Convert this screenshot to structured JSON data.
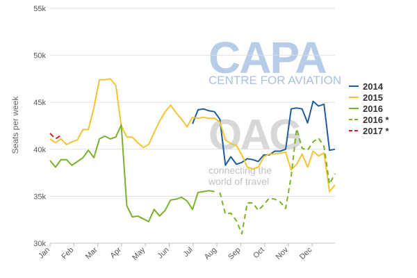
{
  "watermarks": {
    "capa_big": "CAPA",
    "capa_small": "CENTRE FOR AVIATION",
    "oag_big": "OAG",
    "oag_line1": "connecting the",
    "oag_line2": "world of travel",
    "capa_color": "#9fbbe0",
    "oag_color": "#c8c8c8"
  },
  "chart_data": {
    "type": "line",
    "title": "",
    "xlabel": "",
    "ylabel": "Seats per week",
    "ylim": [
      30000,
      55000
    ],
    "yticks": [
      30000,
      35000,
      40000,
      45000,
      50000,
      55000
    ],
    "ytick_labels": [
      "30k",
      "35k",
      "40k",
      "45k",
      "50k",
      "55k"
    ],
    "xlim": [
      0,
      52
    ],
    "xticks": [
      0,
      4.35,
      8.7,
      13.05,
      17.4,
      21.75,
      26.1,
      30.45,
      34.8,
      39.15,
      43.5,
      47.85
    ],
    "xtick_labels": [
      "Jan",
      "Feb",
      "Mar",
      "Apr",
      "May",
      "Jun",
      "Jul",
      "Aug",
      "Sep",
      "Oct",
      "Nov",
      "Dec"
    ],
    "x_unit": "week of year",
    "grid": "horizontal",
    "legend_position": "right",
    "series": [
      {
        "name": "2014",
        "color": "#1f5c99",
        "dash": false,
        "points": [
          [
            26,
            42700
          ],
          [
            27,
            44200
          ],
          [
            28,
            44300
          ],
          [
            29,
            44100
          ],
          [
            30,
            44000
          ],
          [
            31,
            43200
          ],
          [
            32,
            38300
          ],
          [
            33,
            39200
          ],
          [
            34,
            38400
          ],
          [
            35,
            38600
          ],
          [
            36,
            39000
          ],
          [
            37,
            38900
          ],
          [
            38,
            38700
          ],
          [
            39,
            39400
          ],
          [
            40,
            39400
          ],
          [
            41,
            39800
          ],
          [
            42,
            39800
          ],
          [
            43,
            40000
          ],
          [
            44,
            44300
          ],
          [
            45,
            44400
          ],
          [
            46,
            44300
          ],
          [
            47,
            42800
          ],
          [
            48,
            45100
          ],
          [
            49,
            44600
          ],
          [
            50,
            44800
          ],
          [
            51,
            39900
          ],
          [
            52,
            40000
          ]
        ]
      },
      {
        "name": "2015",
        "color": "#f4c430",
        "dash": false,
        "points": [
          [
            0,
            41100
          ],
          [
            1,
            40700
          ],
          [
            2,
            41100
          ],
          [
            3,
            40500
          ],
          [
            4,
            40800
          ],
          [
            5,
            41000
          ],
          [
            6,
            42100
          ],
          [
            7,
            42100
          ],
          [
            8,
            44400
          ],
          [
            9,
            47400
          ],
          [
            10,
            47400
          ],
          [
            11,
            47500
          ],
          [
            12,
            46800
          ],
          [
            13,
            42500
          ],
          [
            14,
            41300
          ],
          [
            15,
            41300
          ],
          [
            16,
            40700
          ],
          [
            17,
            40200
          ],
          [
            18,
            40500
          ],
          [
            19,
            41800
          ],
          [
            20,
            43000
          ],
          [
            21,
            44000
          ],
          [
            22,
            44700
          ],
          [
            23,
            43900
          ],
          [
            24,
            43200
          ],
          [
            25,
            42400
          ],
          [
            26,
            43400
          ],
          [
            27,
            43300
          ],
          [
            28,
            43400
          ],
          [
            29,
            43300
          ],
          [
            30,
            43300
          ],
          [
            31,
            42900
          ],
          [
            32,
            41000
          ],
          [
            33,
            40600
          ],
          [
            34,
            40400
          ],
          [
            35,
            39400
          ],
          [
            36,
            38100
          ],
          [
            37,
            37900
          ],
          [
            38,
            38100
          ],
          [
            39,
            39200
          ],
          [
            40,
            39500
          ],
          [
            41,
            39500
          ],
          [
            42,
            39600
          ],
          [
            43,
            39700
          ],
          [
            44,
            37800
          ],
          [
            45,
            38400
          ],
          [
            46,
            39500
          ],
          [
            47,
            38100
          ],
          [
            48,
            39800
          ],
          [
            49,
            39300
          ],
          [
            50,
            39600
          ],
          [
            51,
            35500
          ],
          [
            52,
            36200
          ]
        ]
      },
      {
        "name": "2016",
        "color": "#7ab02a",
        "dash": false,
        "points": [
          [
            0,
            38800
          ],
          [
            1,
            38100
          ],
          [
            2,
            38900
          ],
          [
            3,
            38900
          ],
          [
            4,
            38300
          ],
          [
            5,
            38700
          ],
          [
            6,
            39100
          ],
          [
            7,
            39900
          ],
          [
            8,
            39100
          ],
          [
            9,
            41100
          ],
          [
            10,
            41400
          ],
          [
            11,
            41100
          ],
          [
            12,
            41300
          ],
          [
            13,
            42600
          ],
          [
            14,
            34000
          ],
          [
            15,
            32800
          ],
          [
            16,
            32900
          ],
          [
            17,
            32600
          ],
          [
            18,
            32300
          ],
          [
            19,
            33600
          ],
          [
            20,
            32900
          ],
          [
            21,
            33500
          ],
          [
            22,
            34600
          ],
          [
            23,
            34700
          ],
          [
            24,
            34900
          ],
          [
            25,
            34500
          ],
          [
            26,
            33600
          ],
          [
            27,
            35400
          ],
          [
            28,
            35500
          ],
          [
            29,
            35600
          ],
          [
            30,
            35500
          ]
        ]
      },
      {
        "name": "2016 *",
        "color": "#7ab02a",
        "dash": true,
        "points": [
          [
            31,
            35400
          ],
          [
            32,
            33100
          ],
          [
            33,
            33200
          ],
          [
            34,
            32400
          ],
          [
            35,
            31000
          ],
          [
            36,
            34300
          ],
          [
            37,
            34300
          ],
          [
            38,
            33500
          ],
          [
            39,
            34100
          ],
          [
            40,
            34800
          ],
          [
            41,
            34700
          ],
          [
            42,
            34400
          ],
          [
            43,
            33700
          ],
          [
            44,
            37100
          ],
          [
            45,
            42200
          ],
          [
            46,
            40100
          ],
          [
            47,
            39900
          ],
          [
            48,
            40800
          ],
          [
            49,
            41200
          ],
          [
            50,
            40300
          ],
          [
            51,
            36300
          ],
          [
            52,
            37400
          ]
        ]
      },
      {
        "name": "2017 *",
        "color": "#cc1f1f",
        "dash": true,
        "points": [
          [
            0,
            41700
          ],
          [
            1,
            41100
          ],
          [
            2,
            41500
          ]
        ]
      }
    ]
  }
}
